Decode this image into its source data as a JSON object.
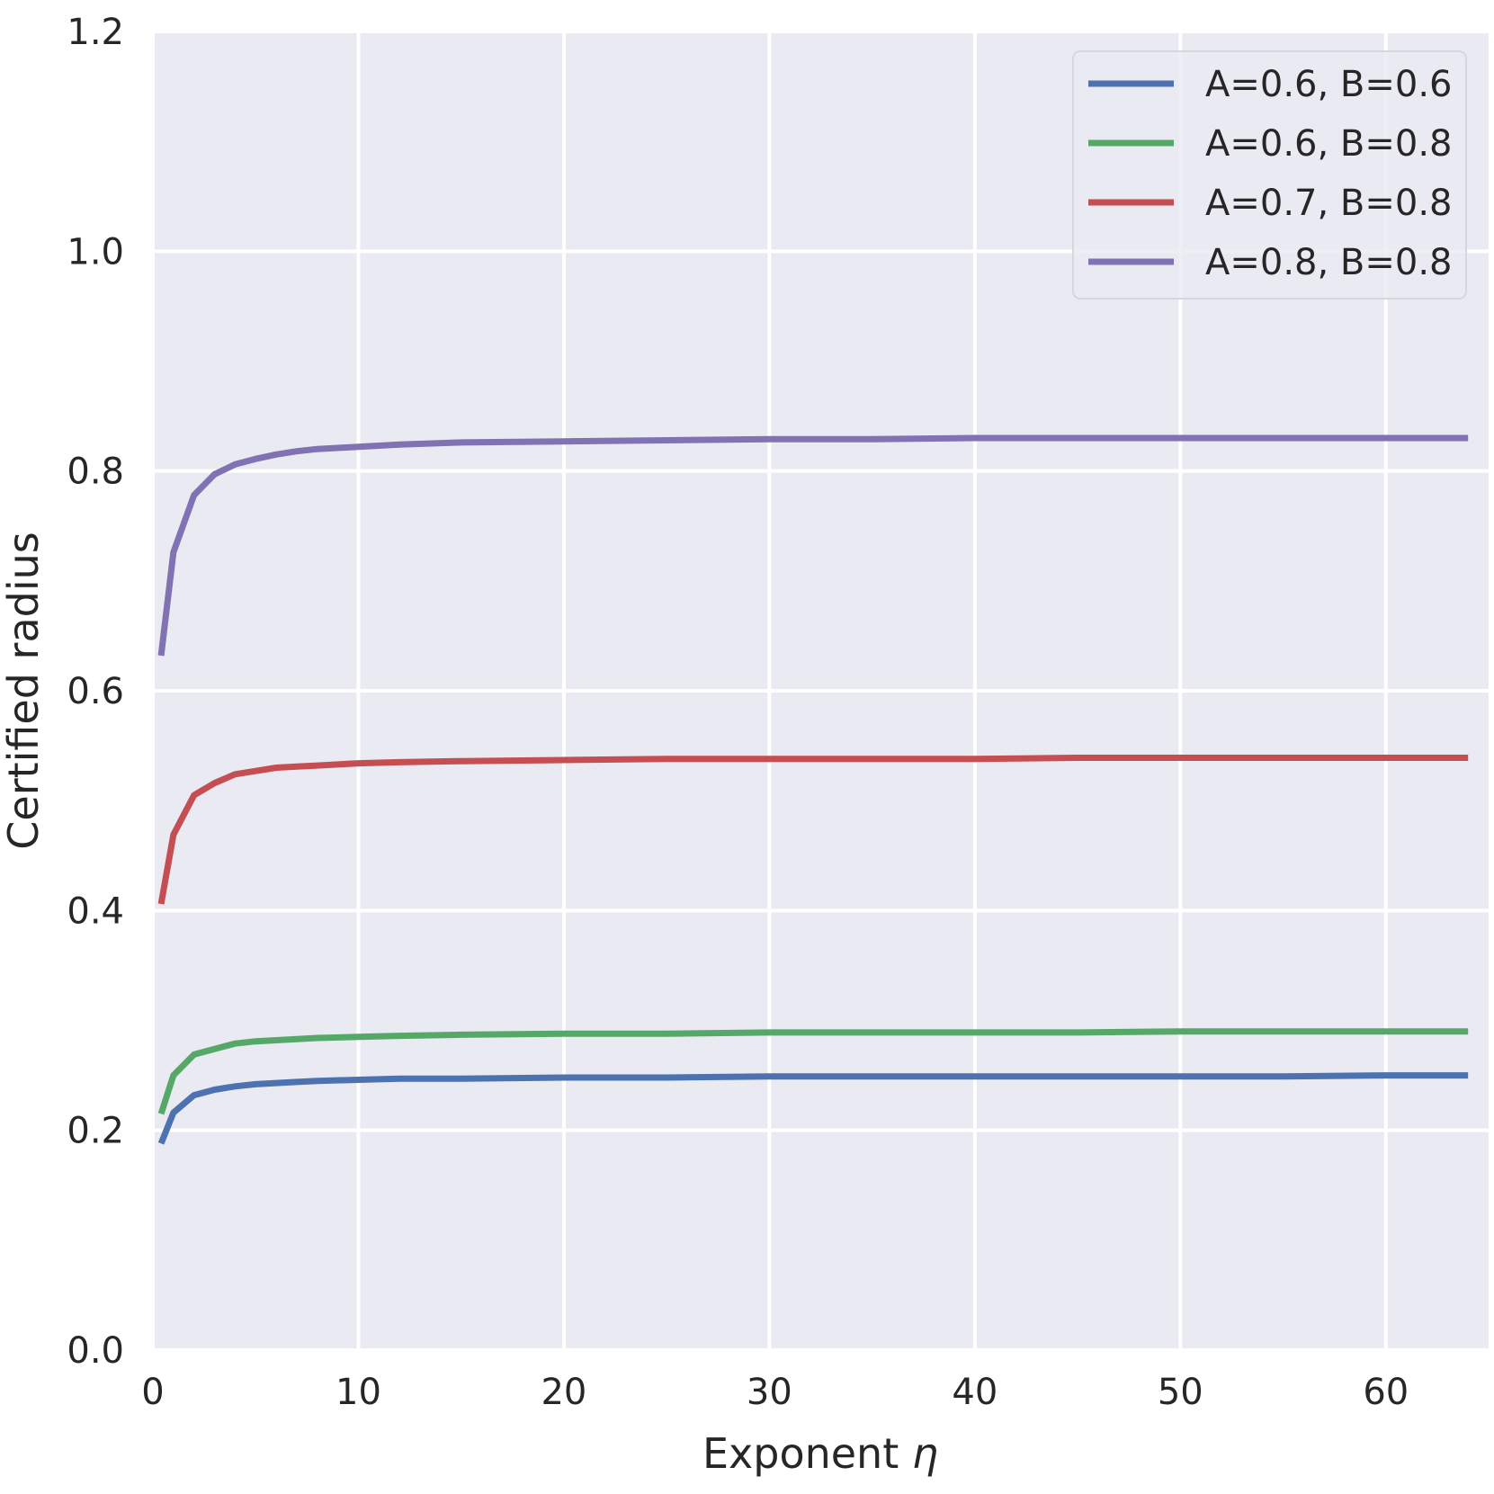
{
  "chart_data": {
    "type": "line",
    "title": "",
    "xlabel": "Exponent",
    "xlabel_symbol": "η",
    "ylabel": "Certified radius",
    "xlim": [
      0,
      65
    ],
    "ylim": [
      0.0,
      1.2
    ],
    "xticks": [
      0,
      10,
      20,
      30,
      40,
      50,
      60
    ],
    "xtick_labels": [
      "0",
      "10",
      "20",
      "30",
      "40",
      "50",
      "60"
    ],
    "yticks": [
      0.0,
      0.2,
      0.4,
      0.6,
      0.8,
      1.0,
      1.2
    ],
    "ytick_labels": [
      "0.0",
      "0.2",
      "0.4",
      "0.6",
      "0.8",
      "1.0",
      "1.2"
    ],
    "grid": true,
    "background": "#eaeaf2",
    "legend_position": "top-right",
    "x": [
      0.4,
      1,
      2,
      3,
      4,
      5,
      6,
      7,
      8,
      10,
      12,
      15,
      20,
      25,
      30,
      35,
      40,
      45,
      50,
      55,
      60,
      64
    ],
    "series": [
      {
        "name": "A=0.6, B=0.6",
        "color": "#4c72b0",
        "values": [
          0.188,
          0.216,
          0.232,
          0.237,
          0.24,
          0.242,
          0.243,
          0.244,
          0.245,
          0.246,
          0.247,
          0.247,
          0.248,
          0.248,
          0.249,
          0.249,
          0.249,
          0.249,
          0.249,
          0.249,
          0.25,
          0.25
        ]
      },
      {
        "name": "A=0.6, B=0.8",
        "color": "#55a868",
        "values": [
          0.215,
          0.25,
          0.269,
          0.274,
          0.279,
          0.281,
          0.282,
          0.283,
          0.284,
          0.285,
          0.286,
          0.287,
          0.288,
          0.288,
          0.289,
          0.289,
          0.289,
          0.289,
          0.29,
          0.29,
          0.29,
          0.29
        ]
      },
      {
        "name": "A=0.7, B=0.8",
        "color": "#c44e52",
        "values": [
          0.406,
          0.469,
          0.505,
          0.516,
          0.524,
          0.527,
          0.53,
          0.531,
          0.532,
          0.534,
          0.535,
          0.536,
          0.537,
          0.538,
          0.538,
          0.538,
          0.538,
          0.539,
          0.539,
          0.539,
          0.539,
          0.539
        ]
      },
      {
        "name": "A=0.8, B=0.8",
        "color": "#8172b3",
        "values": [
          0.632,
          0.726,
          0.778,
          0.797,
          0.806,
          0.811,
          0.815,
          0.818,
          0.82,
          0.822,
          0.824,
          0.826,
          0.827,
          0.828,
          0.829,
          0.829,
          0.83,
          0.83,
          0.83,
          0.83,
          0.83,
          0.83
        ]
      }
    ]
  }
}
